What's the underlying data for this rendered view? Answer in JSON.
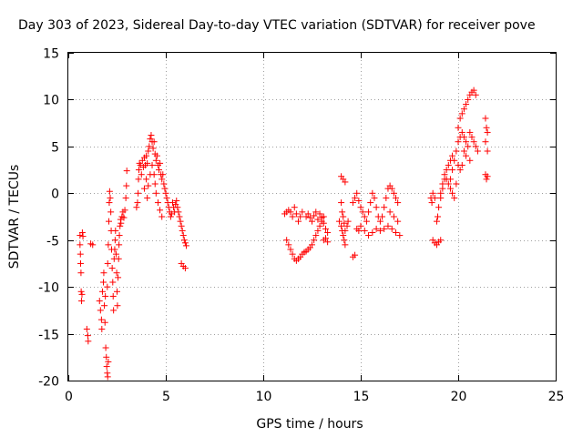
{
  "chart_data": {
    "type": "scatter",
    "title": "Day 303 of 2023, Sidereal Day-to-day VTEC variation (SDTVAR) for receiver pove",
    "xlabel": "GPS time / hours",
    "ylabel": "SDTVAR / TECUs",
    "xlim": [
      0,
      25
    ],
    "ylim": [
      -20,
      15
    ],
    "xticks": [
      0,
      5,
      10,
      15,
      20,
      25
    ],
    "yticks": [
      -20,
      -15,
      -10,
      -5,
      0,
      5,
      10,
      15
    ],
    "grid": true,
    "marker": "+",
    "series_color": "#ff0000",
    "series": [
      {
        "name": "SDTVAR",
        "points": [
          [
            0.6,
            -4.5
          ],
          [
            0.6,
            -5.5
          ],
          [
            0.62,
            -6.5
          ],
          [
            0.63,
            -7.5
          ],
          [
            0.65,
            -8.5
          ],
          [
            0.66,
            -10.5
          ],
          [
            0.68,
            -11.5
          ],
          [
            0.7,
            -10.8
          ],
          [
            0.72,
            -4.2
          ],
          [
            0.75,
            -4.6
          ],
          [
            0.95,
            -14.5
          ],
          [
            1.0,
            -15.2
          ],
          [
            1.02,
            -15.8
          ],
          [
            1.15,
            -5.4
          ],
          [
            1.25,
            -5.5
          ],
          [
            1.6,
            -11.5
          ],
          [
            1.65,
            -12.5
          ],
          [
            1.7,
            -13.5
          ],
          [
            1.72,
            -14.5
          ],
          [
            1.75,
            -10.5
          ],
          [
            1.8,
            -9.5
          ],
          [
            1.82,
            -8.5
          ],
          [
            1.85,
            -12.0
          ],
          [
            1.88,
            -13.8
          ],
          [
            1.9,
            -11.0
          ],
          [
            1.92,
            -16.5
          ],
          [
            1.95,
            -17.5
          ],
          [
            1.97,
            -18.5
          ],
          [
            2.0,
            -19.2
          ],
          [
            2.02,
            -19.6
          ],
          [
            2.05,
            -18.0
          ],
          [
            2.0,
            -10.0
          ],
          [
            2.02,
            -7.5
          ],
          [
            2.05,
            -5.5
          ],
          [
            2.08,
            -3.0
          ],
          [
            2.1,
            -1.0
          ],
          [
            2.12,
            0.2
          ],
          [
            2.15,
            -0.5
          ],
          [
            2.18,
            -2.0
          ],
          [
            2.2,
            -4.0
          ],
          [
            2.22,
            -6.0
          ],
          [
            2.25,
            -8.0
          ],
          [
            2.28,
            -9.5
          ],
          [
            2.3,
            -11.0
          ],
          [
            2.32,
            -12.5
          ],
          [
            2.35,
            -7.0
          ],
          [
            2.38,
            -6.0
          ],
          [
            2.4,
            -5.0
          ],
          [
            2.42,
            -4.0
          ],
          [
            2.45,
            -6.5
          ],
          [
            2.48,
            -8.5
          ],
          [
            2.5,
            -10.5
          ],
          [
            2.52,
            -12.0
          ],
          [
            2.55,
            -9.0
          ],
          [
            2.58,
            -7.0
          ],
          [
            2.6,
            -5.5
          ],
          [
            2.62,
            -4.5
          ],
          [
            2.65,
            -3.5
          ],
          [
            2.68,
            -2.8
          ],
          [
            2.7,
            -3.2
          ],
          [
            2.75,
            -2.5
          ],
          [
            2.8,
            -2.0
          ],
          [
            2.85,
            -2.6
          ],
          [
            2.9,
            -1.8
          ],
          [
            2.95,
            -0.5
          ],
          [
            2.98,
            0.8
          ],
          [
            3.0,
            2.4
          ],
          [
            3.5,
            -1.5
          ],
          [
            3.55,
            -1.0
          ],
          [
            3.58,
            0.0
          ],
          [
            3.6,
            1.5
          ],
          [
            3.62,
            2.5
          ],
          [
            3.65,
            3.2
          ],
          [
            3.7,
            3.0
          ],
          [
            3.75,
            2.0
          ],
          [
            3.8,
            3.5
          ],
          [
            3.85,
            2.8
          ],
          [
            3.9,
            3.8
          ],
          [
            3.95,
            3.0
          ],
          [
            4.0,
            4.0
          ],
          [
            4.05,
            3.2
          ],
          [
            4.1,
            4.5
          ],
          [
            4.15,
            5.0
          ],
          [
            4.2,
            5.8
          ],
          [
            4.25,
            6.2
          ],
          [
            4.3,
            5.5
          ],
          [
            4.35,
            4.8
          ],
          [
            4.4,
            5.5
          ],
          [
            4.45,
            4.2
          ],
          [
            4.5,
            3.5
          ],
          [
            4.55,
            4.0
          ],
          [
            4.6,
            3.0
          ],
          [
            4.65,
            2.5
          ],
          [
            4.7,
            3.2
          ],
          [
            4.75,
            2.0
          ],
          [
            4.8,
            1.5
          ],
          [
            4.85,
            2.0
          ],
          [
            4.9,
            1.0
          ],
          [
            4.95,
            0.5
          ],
          [
            5.0,
            0.0
          ],
          [
            5.05,
            -0.5
          ],
          [
            5.1,
            -1.0
          ],
          [
            5.15,
            -1.5
          ],
          [
            5.2,
            -2.0
          ],
          [
            5.25,
            -2.5
          ],
          [
            5.3,
            -2.2
          ],
          [
            5.35,
            -1.0
          ],
          [
            5.4,
            -1.5
          ],
          [
            5.45,
            -2.0
          ],
          [
            5.5,
            -1.2
          ],
          [
            5.55,
            -0.8
          ],
          [
            5.6,
            -1.5
          ],
          [
            5.65,
            -2.0
          ],
          [
            5.7,
            -2.5
          ],
          [
            5.75,
            -3.0
          ],
          [
            5.8,
            -3.5
          ],
          [
            5.85,
            -4.0
          ],
          [
            5.9,
            -4.5
          ],
          [
            5.95,
            -5.0
          ],
          [
            6.0,
            -5.3
          ],
          [
            6.05,
            -5.6
          ],
          [
            5.8,
            -7.5
          ],
          [
            5.9,
            -7.8
          ],
          [
            6.0,
            -8.0
          ],
          [
            3.9,
            0.5
          ],
          [
            4.0,
            1.5
          ],
          [
            4.05,
            -0.5
          ],
          [
            4.1,
            0.8
          ],
          [
            4.2,
            2.0
          ],
          [
            4.3,
            3.0
          ],
          [
            4.4,
            2.0
          ],
          [
            4.45,
            1.0
          ],
          [
            4.5,
            0.0
          ],
          [
            4.6,
            -1.0
          ],
          [
            4.7,
            -1.8
          ],
          [
            4.8,
            -2.5
          ],
          [
            11.1,
            -2.2
          ],
          [
            11.2,
            -2.0
          ],
          [
            11.3,
            -1.8
          ],
          [
            11.4,
            -2.0
          ],
          [
            11.5,
            -2.5
          ],
          [
            11.6,
            -1.5
          ],
          [
            11.7,
            -2.2
          ],
          [
            11.8,
            -3.0
          ],
          [
            11.9,
            -2.5
          ],
          [
            12.0,
            -2.0
          ],
          [
            11.2,
            -5.0
          ],
          [
            11.3,
            -5.5
          ],
          [
            11.4,
            -6.0
          ],
          [
            11.5,
            -6.5
          ],
          [
            11.6,
            -7.0
          ],
          [
            11.7,
            -7.2
          ],
          [
            11.8,
            -7.0
          ],
          [
            11.9,
            -6.8
          ],
          [
            12.0,
            -6.5
          ],
          [
            12.1,
            -6.3
          ],
          [
            12.2,
            -6.2
          ],
          [
            12.3,
            -6.0
          ],
          [
            12.4,
            -5.8
          ],
          [
            12.5,
            -5.5
          ],
          [
            12.6,
            -5.0
          ],
          [
            12.7,
            -4.5
          ],
          [
            12.8,
            -4.0
          ],
          [
            12.9,
            -3.5
          ],
          [
            13.0,
            -3.0
          ],
          [
            13.1,
            -2.5
          ],
          [
            12.2,
            -2.5
          ],
          [
            12.3,
            -2.2
          ],
          [
            12.4,
            -2.6
          ],
          [
            12.5,
            -3.0
          ],
          [
            12.6,
            -2.4
          ],
          [
            12.7,
            -2.0
          ],
          [
            12.8,
            -2.8
          ],
          [
            12.9,
            -2.2
          ],
          [
            13.0,
            -2.6
          ],
          [
            13.1,
            -3.2
          ],
          [
            13.2,
            -3.8
          ],
          [
            13.3,
            -4.2
          ],
          [
            13.1,
            -5.0
          ],
          [
            13.2,
            -4.8
          ],
          [
            13.3,
            -5.2
          ],
          [
            13.9,
            -3.0
          ],
          [
            14.0,
            -3.5
          ],
          [
            14.05,
            -4.0
          ],
          [
            14.1,
            -4.5
          ],
          [
            14.15,
            -5.0
          ],
          [
            14.2,
            -5.5
          ],
          [
            14.0,
            -1.0
          ],
          [
            14.05,
            -2.0
          ],
          [
            14.1,
            -2.5
          ],
          [
            14.15,
            -3.2
          ],
          [
            14.2,
            -4.0
          ],
          [
            14.3,
            -3.5
          ],
          [
            14.35,
            -3.0
          ],
          [
            14.0,
            1.8
          ],
          [
            14.1,
            1.5
          ],
          [
            14.2,
            1.2
          ],
          [
            14.6,
            -6.8
          ],
          [
            14.7,
            -6.6
          ],
          [
            14.6,
            -1.0
          ],
          [
            14.7,
            -0.5
          ],
          [
            14.8,
            0.0
          ],
          [
            14.9,
            -0.8
          ],
          [
            15.0,
            -1.5
          ],
          [
            15.1,
            -2.0
          ],
          [
            15.2,
            -2.5
          ],
          [
            15.3,
            -3.0
          ],
          [
            15.4,
            -2.0
          ],
          [
            15.5,
            -1.0
          ],
          [
            15.6,
            0.0
          ],
          [
            15.7,
            -0.5
          ],
          [
            15.8,
            -1.5
          ],
          [
            15.9,
            -2.5
          ],
          [
            16.0,
            -3.0
          ],
          [
            16.1,
            -2.5
          ],
          [
            16.2,
            -1.5
          ],
          [
            16.3,
            -0.5
          ],
          [
            16.4,
            0.5
          ],
          [
            16.5,
            0.8
          ],
          [
            16.6,
            0.5
          ],
          [
            16.7,
            0.0
          ],
          [
            16.8,
            -0.5
          ],
          [
            16.9,
            -1.0
          ],
          [
            15.2,
            -4.0
          ],
          [
            15.4,
            -4.5
          ],
          [
            15.6,
            -4.2
          ],
          [
            15.8,
            -3.8
          ],
          [
            16.0,
            -4.0
          ],
          [
            16.2,
            -3.8
          ],
          [
            16.4,
            -3.5
          ],
          [
            16.6,
            -3.8
          ],
          [
            16.8,
            -4.2
          ],
          [
            17.0,
            -4.5
          ],
          [
            15.0,
            -3.5
          ],
          [
            14.9,
            -4.0
          ],
          [
            14.8,
            -3.8
          ],
          [
            16.5,
            -2.0
          ],
          [
            16.7,
            -2.5
          ],
          [
            16.9,
            -3.0
          ],
          [
            18.6,
            -0.5
          ],
          [
            18.7,
            0.0
          ],
          [
            18.8,
            -0.5
          ],
          [
            18.65,
            -1.0
          ],
          [
            18.7,
            -5.0
          ],
          [
            18.8,
            -5.3
          ],
          [
            18.9,
            -5.5
          ],
          [
            19.0,
            -5.2
          ],
          [
            19.1,
            -5.0
          ],
          [
            18.9,
            -3.0
          ],
          [
            18.95,
            -2.5
          ],
          [
            19.0,
            -1.5
          ],
          [
            19.1,
            -0.5
          ],
          [
            19.2,
            0.5
          ],
          [
            19.3,
            1.5
          ],
          [
            19.4,
            2.5
          ],
          [
            19.5,
            3.0
          ],
          [
            19.6,
            3.5
          ],
          [
            19.7,
            4.0
          ],
          [
            19.1,
            0.0
          ],
          [
            19.2,
            1.0
          ],
          [
            19.3,
            2.0
          ],
          [
            19.4,
            1.5
          ],
          [
            19.5,
            1.0
          ],
          [
            19.6,
            0.5
          ],
          [
            19.7,
            0.0
          ],
          [
            19.8,
            -0.5
          ],
          [
            19.9,
            1.0
          ],
          [
            20.0,
            3.0
          ],
          [
            19.6,
            1.5
          ],
          [
            19.7,
            2.5
          ],
          [
            19.8,
            3.5
          ],
          [
            19.9,
            4.5
          ],
          [
            20.0,
            5.5
          ],
          [
            20.1,
            6.0
          ],
          [
            20.2,
            6.5
          ],
          [
            20.3,
            6.0
          ],
          [
            20.4,
            5.5
          ],
          [
            20.5,
            5.0
          ],
          [
            20.0,
            7.0
          ],
          [
            20.1,
            8.0
          ],
          [
            20.2,
            8.5
          ],
          [
            20.3,
            9.0
          ],
          [
            20.4,
            9.5
          ],
          [
            20.5,
            10.0
          ],
          [
            20.6,
            10.5
          ],
          [
            20.7,
            10.8
          ],
          [
            20.8,
            11.0
          ],
          [
            20.9,
            10.5
          ],
          [
            20.6,
            6.5
          ],
          [
            20.7,
            6.0
          ],
          [
            20.8,
            5.5
          ],
          [
            20.9,
            5.0
          ],
          [
            21.0,
            4.5
          ],
          [
            20.3,
            4.5
          ],
          [
            20.4,
            4.0
          ],
          [
            20.6,
            3.5
          ],
          [
            20.2,
            3.0
          ],
          [
            20.1,
            2.5
          ],
          [
            21.4,
            8.0
          ],
          [
            21.45,
            7.0
          ],
          [
            21.5,
            6.5
          ],
          [
            21.4,
            5.5
          ],
          [
            21.5,
            4.5
          ],
          [
            21.4,
            2.0
          ],
          [
            21.45,
            1.5
          ],
          [
            21.5,
            1.8
          ]
        ]
      }
    ]
  }
}
